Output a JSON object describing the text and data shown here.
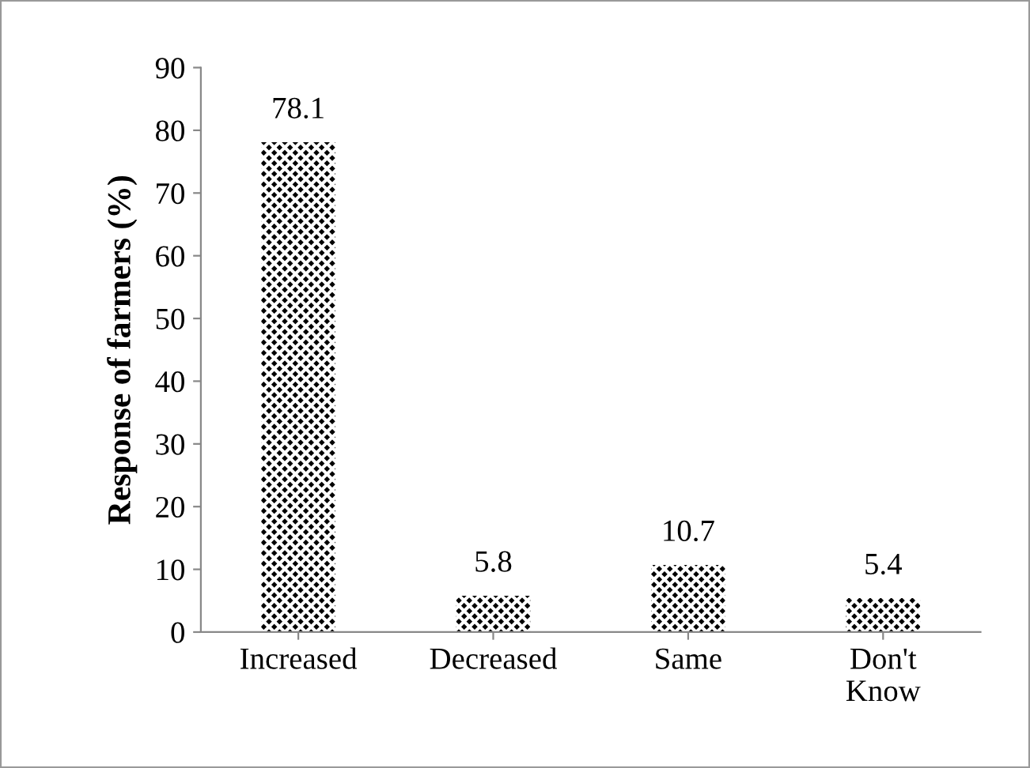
{
  "chart_data": {
    "type": "bar",
    "ylabel": "Response of farmers (%)",
    "categories": [
      "Increased",
      "Decreased",
      "Same",
      "Don't\nKnow"
    ],
    "values": [
      78.1,
      5.8,
      10.7,
      5.4
    ],
    "color": "#000000",
    "ylim": [
      0,
      90
    ],
    "yticks": [
      0,
      10,
      20,
      30,
      40,
      50,
      60,
      70,
      80,
      90
    ],
    "data_labels": true,
    "grid": false
  }
}
